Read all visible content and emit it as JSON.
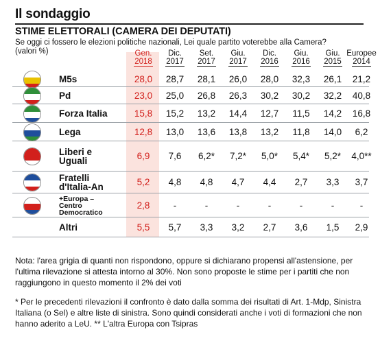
{
  "title": "Il sondaggio",
  "subtitle": "STIME ELETTORALI (CAMERA DEI DEPUTATI)",
  "question": "Se oggi ci fossero le elezioni politiche nazionali, Lei quale partito voterebbe alla Camera?",
  "units": "(valori %)",
  "note1": "Nota: l'area grigia di quanti non rispondono, oppure si dichiarano propensi all'astensione, per l'ultima rilevazione si attesta intorno al 30%. Non sono proposte le stime per i partiti che non raggiungono in questo momento il 2% dei voti",
  "note2": "* Per le precedenti rilevazioni il confronto è dato dalla somma dei risultati di Art. 1-Mdp, Sinistra Italiana (o Sel) e altre liste di sinistra. Sono quindi considerati anche i voti di formazioni che non hanno aderito a LeU. ** L'altra Europa con Tsipras",
  "colors": {
    "highlight_text": "#d2201c",
    "highlight_bg": "#fbe3de"
  },
  "chart_data": {
    "type": "table",
    "columns": [
      {
        "l1": "Gen.",
        "l2": "2018",
        "highlight": true
      },
      {
        "l1": "Dic.",
        "l2": "2017"
      },
      {
        "l1": "Set.",
        "l2": "2017"
      },
      {
        "l1": "Giu.",
        "l2": "2017"
      },
      {
        "l1": "Dic.",
        "l2": "2016"
      },
      {
        "l1": "Giu.",
        "l2": "2016"
      },
      {
        "l1": "Giu.",
        "l2": "2015"
      },
      {
        "l1": "Europee",
        "l2": "2014"
      }
    ],
    "rows": [
      {
        "party": "M5s",
        "logo_colors": [
          "#ffffff",
          "#e9c200",
          "#d2201c"
        ],
        "values": [
          "28,0",
          "28,7",
          "28,1",
          "26,0",
          "28,0",
          "32,3",
          "26,1",
          "21,2"
        ]
      },
      {
        "party": "Pd",
        "logo_colors": [
          "#2f8f3a",
          "#ffffff",
          "#d2201c"
        ],
        "values": [
          "23,0",
          "25,0",
          "26,8",
          "26,3",
          "30,2",
          "30,2",
          "32,2",
          "40,8"
        ]
      },
      {
        "party": "Forza Italia",
        "logo_colors": [
          "#2f8f3a",
          "#ffffff",
          "#1f4e9c"
        ],
        "values": [
          "15,8",
          "15,2",
          "13,2",
          "14,4",
          "12,7",
          "11,5",
          "14,2",
          "16,8"
        ]
      },
      {
        "party": "Lega",
        "logo_colors": [
          "#ffffff",
          "#1f4e9c",
          "#2f8f3a"
        ],
        "values": [
          "12,8",
          "13,0",
          "13,6",
          "13,8",
          "13,2",
          "11,8",
          "14,0",
          "6,2"
        ]
      },
      {
        "party": "Liberi e Uguali",
        "logo_colors": [
          "#d2201c",
          "#d2201c",
          "#ffffff"
        ],
        "values": [
          "6,9",
          "7,6",
          "6,2*",
          "7,2*",
          "5,0*",
          "5,4*",
          "5,2*",
          "4,0**"
        ]
      },
      {
        "party": "Fratelli d'Italia-An",
        "logo_colors": [
          "#1f4e9c",
          "#ffffff",
          "#d2201c"
        ],
        "values": [
          "5,2",
          "4,8",
          "4,8",
          "4,7",
          "4,4",
          "2,7",
          "3,3",
          "3,7"
        ]
      },
      {
        "party": "+Europa – Centro Democratico",
        "logo_colors": [
          "#ffffff",
          "#d2201c",
          "#1f4e9c"
        ],
        "values": [
          "2,8",
          "-",
          "-",
          "-",
          "-",
          "-",
          "-",
          "-"
        ]
      },
      {
        "party": "Altri",
        "logo_colors": null,
        "values": [
          "5,5",
          "5,7",
          "3,3",
          "3,2",
          "2,7",
          "3,6",
          "1,5",
          "2,9"
        ]
      }
    ]
  }
}
